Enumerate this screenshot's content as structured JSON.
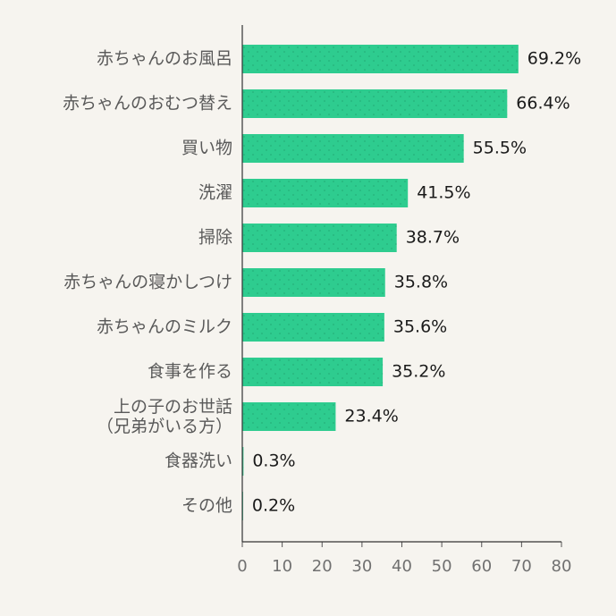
{
  "chart_data": {
    "type": "bar",
    "orientation": "horizontal",
    "categories": [
      "赤ちゃんのお風呂",
      "赤ちゃんのおむつ替え",
      "買い物",
      "洗濯",
      "掃除",
      "赤ちゃんの寝かしつけ",
      "赤ちゃんのミルク",
      "食事を作る",
      "上の子のお世話\n（兄弟がいる方）",
      "食器洗い",
      "その他"
    ],
    "values": [
      69.2,
      66.4,
      55.5,
      41.5,
      38.7,
      35.8,
      35.6,
      35.2,
      23.4,
      0.3,
      0.2
    ],
    "value_labels": [
      "69.2%",
      "66.4%",
      "55.5%",
      "41.5%",
      "38.7%",
      "35.8%",
      "35.6%",
      "35.2%",
      "23.4%",
      "0.3%",
      "0.2%"
    ],
    "color": "#2ecc8f",
    "xlim": [
      0,
      80
    ],
    "xticks": [
      0,
      10,
      20,
      30,
      40,
      50,
      60,
      70,
      80
    ]
  }
}
